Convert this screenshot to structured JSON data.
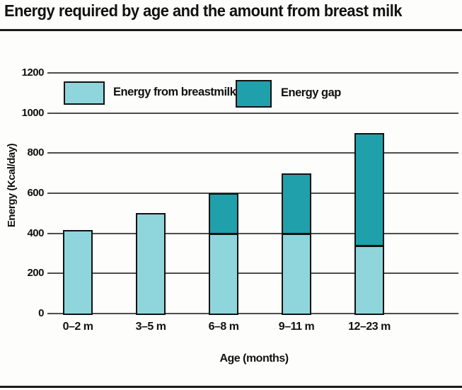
{
  "title": "Energy required by age and the amount from breast milk",
  "chart_data": {
    "type": "bar",
    "stacked": true,
    "title": "Energy required by age and the amount from breast milk",
    "categories": [
      "0–2 m",
      "3–5 m",
      "6–8 m",
      "9–11 m",
      "12–23 m"
    ],
    "series": [
      {
        "name": "Energy from breastmilk",
        "color": "#8FD6DC",
        "values": [
          415,
          500,
          400,
          400,
          340
        ]
      },
      {
        "name": "Energy gap",
        "color": "#20A0AA",
        "values": [
          0,
          0,
          200,
          300,
          560
        ]
      }
    ],
    "totals": [
      415,
      500,
      600,
      700,
      900
    ],
    "xlabel": "Age (months)",
    "ylabel": "Energy (Kcal/day)",
    "ylim": [
      0,
      1200
    ],
    "yticks": [
      0,
      200,
      400,
      600,
      800,
      1000,
      1200
    ],
    "grid": true,
    "legend_position": "inside-top-left"
  },
  "colors": {
    "breastmilk": "#8FD6DC",
    "gap": "#20A0AA",
    "gridline": "#4d4d4d",
    "bar_border": "#111111",
    "rule": "#1a1a1a",
    "background": "#fdfdfb"
  }
}
